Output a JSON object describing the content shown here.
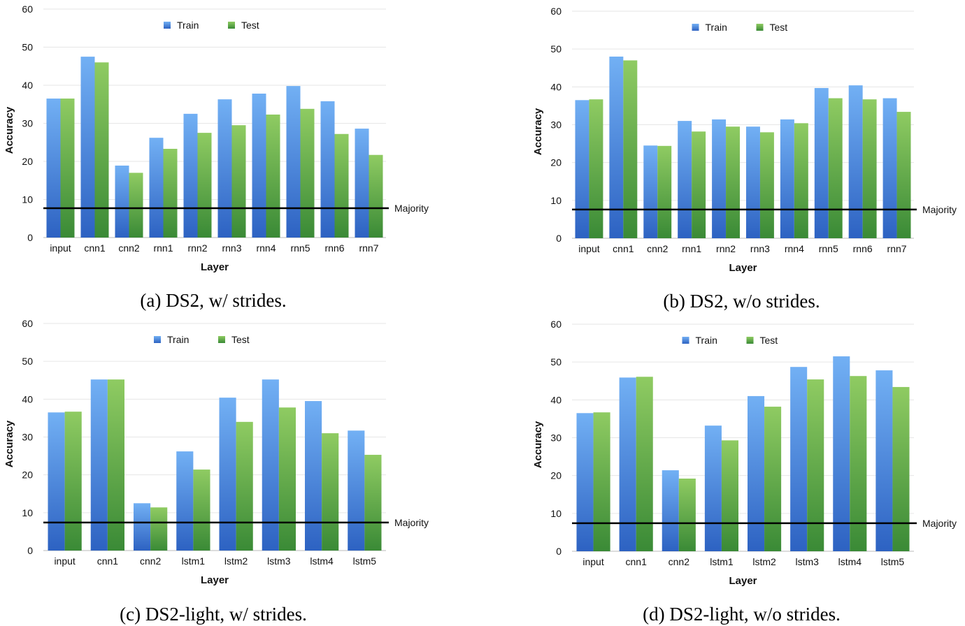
{
  "colors": {
    "train": "#4a88e0",
    "test": "#5ea845",
    "majority": "#000000",
    "grid": "#e6e6e6"
  },
  "chart_data": [
    {
      "type": "bar",
      "caption": "(a) DS2, w/ strides.",
      "xlabel": "Layer",
      "ylabel": "Accuracy",
      "ylim": [
        0,
        60
      ],
      "yticks": [
        0,
        10,
        20,
        30,
        40,
        50,
        60
      ],
      "grid": true,
      "legend": "top-center",
      "categories": [
        "input",
        "cnn1",
        "cnn2",
        "rnn1",
        "rnn2",
        "rnn3",
        "rnn4",
        "rnn5",
        "rnn6",
        "rnn7"
      ],
      "series": [
        {
          "name": "Train",
          "values": [
            36.5,
            47.5,
            18.9,
            26.2,
            32.5,
            36.3,
            37.8,
            39.8,
            35.8,
            28.6
          ]
        },
        {
          "name": "Test",
          "values": [
            36.5,
            46.0,
            17.0,
            23.3,
            27.5,
            29.5,
            32.3,
            33.8,
            27.2,
            21.7
          ]
        }
      ],
      "reference_line": {
        "label": "Majority",
        "value": 7.7
      }
    },
    {
      "type": "bar",
      "caption": "(b) DS2, w/o strides.",
      "xlabel": "Layer",
      "ylabel": "Accuracy",
      "ylim": [
        0,
        60
      ],
      "yticks": [
        0,
        10,
        20,
        30,
        40,
        50,
        60
      ],
      "grid": true,
      "legend": "top-center",
      "categories": [
        "input",
        "cnn1",
        "cnn2",
        "rnn1",
        "rnn2",
        "rnn3",
        "rnn4",
        "rnn5",
        "rnn6",
        "rnn7"
      ],
      "series": [
        {
          "name": "Train",
          "values": [
            36.5,
            48.0,
            24.5,
            31.0,
            31.4,
            29.5,
            31.4,
            39.7,
            40.4,
            37.0
          ]
        },
        {
          "name": "Test",
          "values": [
            36.7,
            47.0,
            24.4,
            28.2,
            29.5,
            28.0,
            30.4,
            37.0,
            36.7,
            33.4
          ]
        }
      ],
      "reference_line": {
        "label": "Majority",
        "value": 7.6
      }
    },
    {
      "type": "bar",
      "caption": "(c) DS2-light, w/ strides.",
      "xlabel": "Layer",
      "ylabel": "Accuracy",
      "ylim": [
        0,
        60
      ],
      "yticks": [
        0,
        10,
        20,
        30,
        40,
        50,
        60
      ],
      "grid": true,
      "legend": "top-center",
      "categories": [
        "input",
        "cnn1",
        "cnn2",
        "lstm1",
        "lstm2",
        "lstm3",
        "lstm4",
        "lstm5"
      ],
      "series": [
        {
          "name": "Train",
          "values": [
            36.5,
            45.2,
            12.5,
            26.2,
            40.4,
            45.2,
            39.5,
            31.7
          ]
        },
        {
          "name": "Test",
          "values": [
            36.7,
            45.2,
            11.4,
            21.4,
            34.0,
            37.8,
            31.0,
            25.3
          ]
        }
      ],
      "reference_line": {
        "label": "Majority",
        "value": 7.4
      }
    },
    {
      "type": "bar",
      "caption": "(d) DS2-light, w/o strides.",
      "xlabel": "Layer",
      "ylabel": "Accuracy",
      "ylim": [
        0,
        60
      ],
      "yticks": [
        0,
        10,
        20,
        30,
        40,
        50,
        60
      ],
      "grid": true,
      "legend": "top-center",
      "categories": [
        "input",
        "cnn1",
        "cnn2",
        "lstm1",
        "lstm2",
        "lstm3",
        "lstm4",
        "lstm5"
      ],
      "series": [
        {
          "name": "Train",
          "values": [
            36.5,
            45.9,
            21.4,
            33.2,
            41.0,
            48.7,
            51.5,
            47.8
          ]
        },
        {
          "name": "Test",
          "values": [
            36.7,
            46.1,
            19.2,
            29.3,
            38.2,
            45.4,
            46.3,
            43.4
          ]
        }
      ],
      "reference_line": {
        "label": "Majority",
        "value": 7.4
      }
    }
  ]
}
